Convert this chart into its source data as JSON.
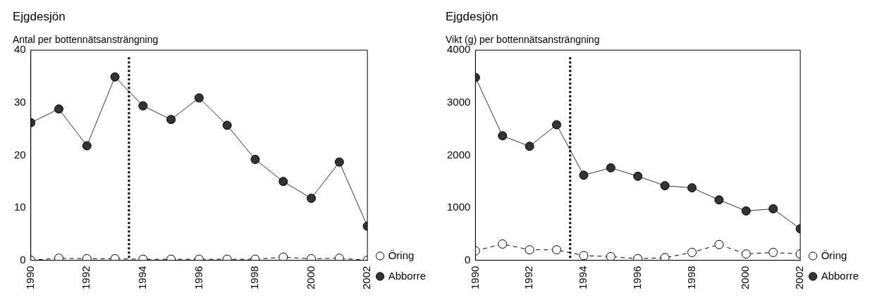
{
  "chart_data": [
    {
      "type": "line",
      "title": "Ejgdesjön",
      "subtitle": "Antal per bottennätsansträngning",
      "x": [
        1990,
        1991,
        1992,
        1993,
        1994,
        1995,
        1996,
        1997,
        1998,
        1999,
        2000,
        2001,
        2002
      ],
      "xlim": [
        1990,
        2002
      ],
      "xticks": [
        1990,
        1992,
        1994,
        1996,
        1998,
        2000,
        2002
      ],
      "ylim": [
        0,
        40
      ],
      "yticks": [
        0,
        10,
        20,
        30,
        40
      ],
      "grid": false,
      "legend": "bottom right",
      "marker": "circle",
      "ref_lines": [
        {
          "axis": "x",
          "value": 1993.5,
          "color": "#000000",
          "line_style": "dotted"
        }
      ],
      "series": [
        {
          "name": "Öring",
          "color": "#000000",
          "line_style": "dashed",
          "values": [
            0,
            0.4,
            0.3,
            0.3,
            0.2,
            0.2,
            0.2,
            0.2,
            0.2,
            0.6,
            0.3,
            0.4,
            0
          ]
        },
        {
          "name": "Abborre",
          "color": "#333333",
          "line_style": "solid",
          "values": [
            26.2,
            28.8,
            21.8,
            34.9,
            29.4,
            26.8,
            30.9,
            25.7,
            19.2,
            15.0,
            11.8,
            18.7,
            6.5
          ]
        }
      ]
    },
    {
      "type": "line",
      "title": "Ejgdesjön",
      "subtitle": "Vikt (g) per bottennätsansträngning",
      "x": [
        1990,
        1991,
        1992,
        1993,
        1994,
        1995,
        1996,
        1997,
        1998,
        1999,
        2000,
        2001,
        2002
      ],
      "xlim": [
        1990,
        2002
      ],
      "xticks": [
        1990,
        1992,
        1994,
        1996,
        1998,
        2000,
        2002
      ],
      "ylim": [
        0,
        4000
      ],
      "yticks": [
        0,
        1000,
        2000,
        3000,
        4000
      ],
      "grid": false,
      "legend": "bottom right",
      "marker": "circle",
      "ref_lines": [
        {
          "axis": "x",
          "value": 1993.5,
          "color": "#000000",
          "line_style": "dotted"
        }
      ],
      "series": [
        {
          "name": "Öring",
          "color": "#000000",
          "line_style": "dashed",
          "values": [
            180,
            310,
            200,
            200,
            90,
            70,
            30,
            50,
            150,
            300,
            120,
            150,
            120
          ]
        },
        {
          "name": "Abborre",
          "color": "#333333",
          "line_style": "solid",
          "values": [
            3480,
            2370,
            2170,
            2580,
            1620,
            1760,
            1600,
            1420,
            1380,
            1150,
            940,
            980,
            600
          ]
        }
      ]
    }
  ]
}
